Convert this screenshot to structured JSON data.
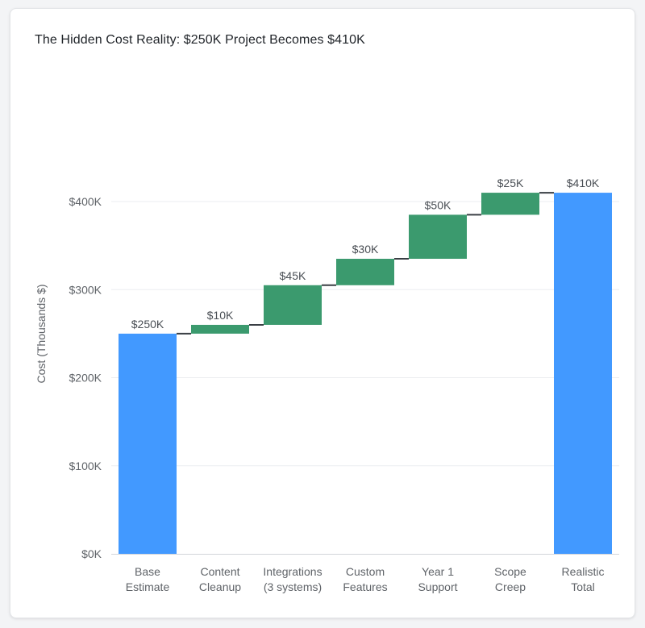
{
  "chart_data": {
    "type": "waterfall",
    "title": "The Hidden Cost Reality: $250K Project Becomes $410K",
    "ylabel": "Cost (Thousands $)",
    "xlabel": "",
    "ylim": [
      0,
      400
    ],
    "y_ticks": [
      0,
      100,
      200,
      300,
      400
    ],
    "y_tick_labels": [
      "$0K",
      "$100K",
      "$200K",
      "$300K",
      "$400K"
    ],
    "grid": true,
    "categories": [
      [
        "Base",
        "Estimate"
      ],
      [
        "Content",
        "Cleanup"
      ],
      [
        "Integrations",
        "(3 systems)"
      ],
      [
        "Custom",
        "Features"
      ],
      [
        "Year 1",
        "Support"
      ],
      [
        "Scope",
        "Creep"
      ],
      [
        "Realistic",
        "Total"
      ]
    ],
    "steps": [
      {
        "kind": "total",
        "value": 250,
        "label": "$250K"
      },
      {
        "kind": "increase",
        "value": 10,
        "label": "$10K"
      },
      {
        "kind": "increase",
        "value": 45,
        "label": "$45K"
      },
      {
        "kind": "increase",
        "value": 30,
        "label": "$30K"
      },
      {
        "kind": "increase",
        "value": 50,
        "label": "$50K"
      },
      {
        "kind": "increase",
        "value": 25,
        "label": "$25K"
      },
      {
        "kind": "total",
        "value": 410,
        "label": "$410K"
      }
    ],
    "colors": {
      "total": "#4299ff",
      "increase": "#3b9a6e",
      "connector": "#3a3f44",
      "grid": "#ebedf0",
      "axis": "#d3d6da"
    }
  }
}
